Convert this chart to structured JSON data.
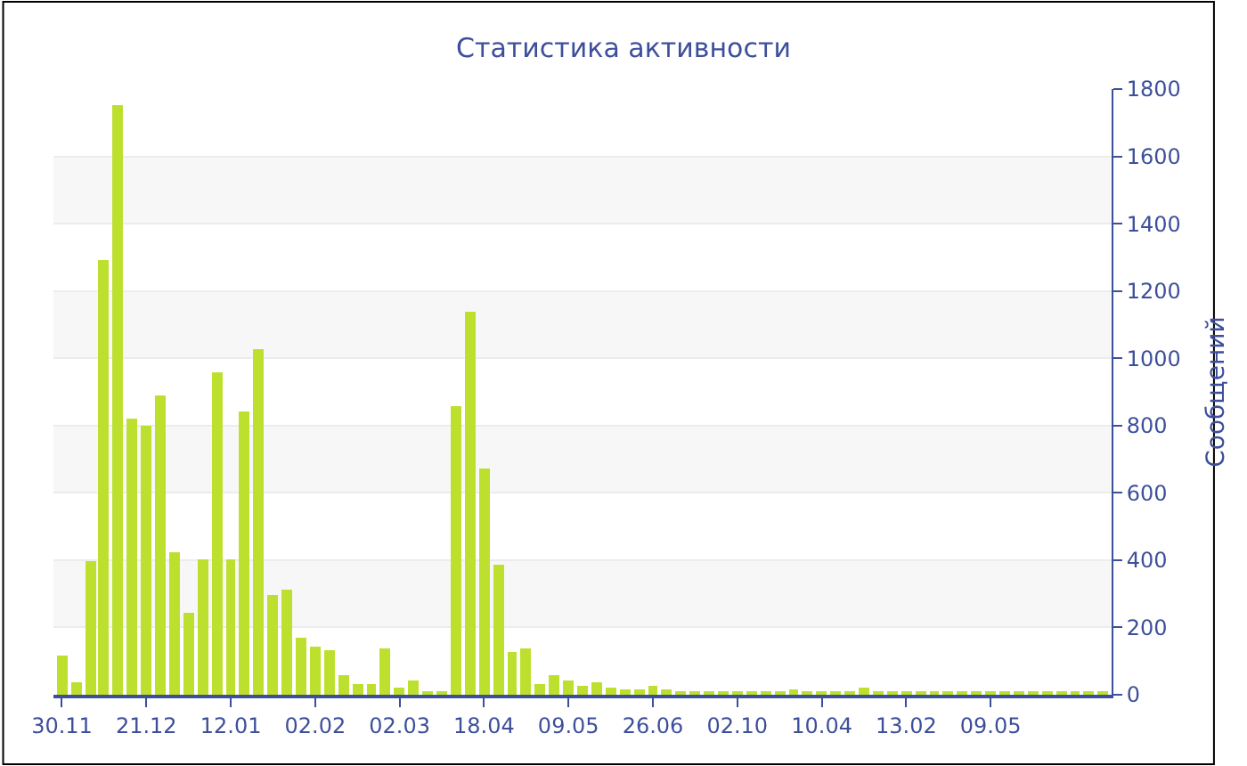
{
  "chart_data": {
    "type": "bar",
    "title": "Статистика активности",
    "ylabel": "Сообщений",
    "categories": [
      "30.11",
      null,
      null,
      null,
      null,
      null,
      "21.12",
      null,
      null,
      null,
      null,
      null,
      "12.01",
      null,
      null,
      null,
      null,
      null,
      "02.02",
      null,
      null,
      null,
      null,
      null,
      "02.03",
      null,
      null,
      null,
      null,
      null,
      "18.04",
      null,
      null,
      null,
      null,
      null,
      "09.05",
      null,
      null,
      null,
      null,
      null,
      "26.06",
      null,
      null,
      null,
      null,
      null,
      "02.10",
      null,
      null,
      null,
      null,
      null,
      "10.04",
      null,
      null,
      null,
      null,
      null,
      "13.02",
      null,
      null,
      null,
      null,
      null,
      "09.05",
      null,
      null,
      null,
      null,
      null,
      null,
      null,
      null
    ],
    "values": [
      118,
      35,
      395,
      1290,
      1750,
      820,
      800,
      890,
      425,
      245,
      400,
      960,
      405,
      840,
      1025,
      295,
      310,
      170,
      145,
      135,
      60,
      33,
      30,
      140,
      21,
      42,
      10,
      8,
      860,
      1140,
      675,
      385,
      127,
      140,
      32,
      58,
      42,
      25,
      39,
      21,
      18,
      14,
      25,
      14,
      8,
      10,
      8,
      8,
      10,
      12,
      8,
      8,
      14,
      10,
      8,
      10,
      12,
      20,
      8,
      8,
      8,
      8,
      10,
      12,
      10,
      8,
      8,
      12,
      10,
      8,
      6,
      6,
      8,
      10,
      8
    ],
    "color": "#bde02f",
    "ylim": [
      0,
      1800
    ],
    "yticks": [
      0,
      200,
      400,
      600,
      800,
      1000,
      1200,
      1400,
      1600,
      1800
    ],
    "grid": "y"
  }
}
